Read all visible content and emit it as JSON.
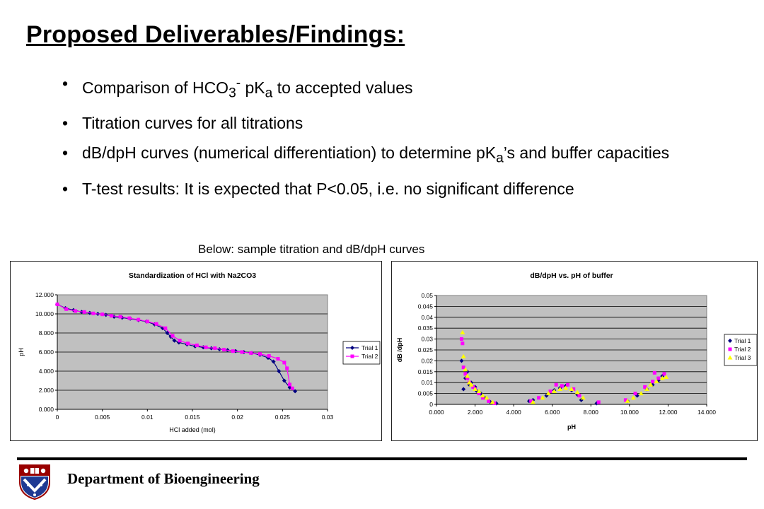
{
  "slide": {
    "title": "Proposed Deliverables/Findings:",
    "bullets": {
      "b1": {
        "pre": "Comparison of HCO",
        "sub1": "3",
        "sup": "-",
        "mid": " pK",
        "sub2": "a",
        "post": " to accepted values"
      },
      "b2": {
        "text": "Titration curves for all titrations"
      },
      "b3": {
        "pre": "dB/dpH curves (numerical differentiation) to determine pK",
        "sub": "a",
        "post": "’s and buffer capacities"
      },
      "b4": {
        "text": "T-test results: It is expected that P<0.05, i.e. no significant difference"
      }
    },
    "bullet_glyph": "•",
    "caption": "Below: sample titration and dB/dpH curves",
    "footer": "Department of Bioengineering",
    "logo_icon": "penn-shield-icon"
  },
  "chart_data": [
    {
      "type": "line",
      "title": "Standardization of HCl with Na2CO3",
      "xlabel": "HCl added (mol)",
      "ylabel": "pH",
      "xlim": [
        0,
        0.03
      ],
      "ylim": [
        0,
        12
      ],
      "xticks": [
        "0",
        "0.005",
        "0.01",
        "0.015",
        "0.02",
        "0.025",
        "0.03"
      ],
      "yticks": [
        "0.000",
        "2.000",
        "4.000",
        "6.000",
        "8.000",
        "10.000",
        "12.000"
      ],
      "grid": true,
      "legend": "right",
      "plot_bg": "#c0c0c0",
      "series": [
        {
          "name": "Trial 1",
          "color": "#000080",
          "marker": "diamond",
          "x": [
            0,
            0.0009,
            0.0018,
            0.0027,
            0.0036,
            0.0045,
            0.0054,
            0.0063,
            0.0072,
            0.0081,
            0.009,
            0.0099,
            0.0108,
            0.0117,
            0.0122,
            0.0126,
            0.013,
            0.0135,
            0.0144,
            0.0153,
            0.0162,
            0.0171,
            0.018,
            0.0189,
            0.0198,
            0.0207,
            0.0216,
            0.0225,
            0.0234,
            0.024,
            0.0246,
            0.0252,
            0.0258,
            0.0264
          ],
          "y": [
            11.0,
            10.6,
            10.4,
            10.2,
            10.1,
            10.0,
            9.9,
            9.7,
            9.6,
            9.5,
            9.35,
            9.2,
            8.9,
            8.5,
            8.0,
            7.6,
            7.2,
            7.0,
            6.8,
            6.6,
            6.5,
            6.4,
            6.3,
            6.2,
            6.1,
            6.0,
            5.9,
            5.7,
            5.4,
            5.0,
            4.0,
            3.0,
            2.3,
            1.9
          ]
        },
        {
          "name": "Trial 2",
          "color": "#ff00ff",
          "marker": "square",
          "x": [
            0,
            0.001,
            0.002,
            0.003,
            0.004,
            0.005,
            0.006,
            0.007,
            0.008,
            0.009,
            0.01,
            0.011,
            0.012,
            0.0128,
            0.0136,
            0.0145,
            0.0155,
            0.0165,
            0.0175,
            0.0185,
            0.0195,
            0.0205,
            0.0215,
            0.0225,
            0.0235,
            0.0245,
            0.0252,
            0.0255,
            0.0258,
            0.0261
          ],
          "y": [
            11.0,
            10.5,
            10.3,
            10.2,
            10.05,
            9.95,
            9.8,
            9.7,
            9.55,
            9.4,
            9.2,
            8.95,
            8.5,
            7.7,
            7.2,
            6.9,
            6.7,
            6.5,
            6.4,
            6.25,
            6.1,
            6.0,
            5.9,
            5.8,
            5.6,
            5.3,
            4.9,
            4.3,
            2.6,
            2.2
          ]
        }
      ]
    },
    {
      "type": "scatter",
      "title": "dB/dpH vs. pH of buffer",
      "xlabel": "pH",
      "ylabel": "dB /dpH",
      "xlim": [
        0,
        14
      ],
      "ylim": [
        0,
        0.05
      ],
      "xticks": [
        "0.000",
        "2.000",
        "4.000",
        "6.000",
        "8.000",
        "10.000",
        "12.000",
        "14.000"
      ],
      "yticks": [
        "0",
        "0.005",
        "0.01",
        "0.015",
        "0.02",
        "0.025",
        "0.03",
        "0.035",
        "0.04",
        "0.045",
        "0.05"
      ],
      "grid": true,
      "legend": "right",
      "plot_bg": "#c0c0c0",
      "series": [
        {
          "name": "Trial 1",
          "color": "#000080",
          "marker": "diamond",
          "x": [
            1.3,
            1.4,
            1.5,
            1.6,
            1.7,
            1.8,
            2.0,
            2.1,
            2.3,
            2.5,
            2.8,
            3.1,
            4.8,
            5.0,
            5.7,
            6.1,
            6.4,
            6.7,
            7.0,
            7.3,
            7.5,
            8.3,
            9.9,
            10.4,
            10.9,
            11.2,
            11.5,
            11.7
          ],
          "y": [
            0.02,
            0.007,
            0.012,
            0.015,
            0.009,
            0.01,
            0.008,
            0.006,
            0.005,
            0.003,
            0.001,
            0.0005,
            0.0015,
            0.002,
            0.004,
            0.0065,
            0.0075,
            0.0085,
            0.0065,
            0.0045,
            0.002,
            0.0005,
            0.0015,
            0.004,
            0.007,
            0.009,
            0.011,
            0.013
          ]
        },
        {
          "name": "Trial 2",
          "color": "#ff00ff",
          "marker": "square",
          "x": [
            1.3,
            1.35,
            1.4,
            1.5,
            1.6,
            1.7,
            1.9,
            2.0,
            2.2,
            2.4,
            2.7,
            3.0,
            4.9,
            5.3,
            5.9,
            6.2,
            6.5,
            6.8,
            7.1,
            7.4,
            8.4,
            9.8,
            10.3,
            10.8,
            11.2,
            11.3,
            11.5,
            11.8
          ],
          "y": [
            0.03,
            0.028,
            0.017,
            0.014,
            0.012,
            0.01,
            0.008,
            0.007,
            0.005,
            0.003,
            0.0015,
            0.0005,
            0.0015,
            0.003,
            0.006,
            0.009,
            0.0085,
            0.009,
            0.007,
            0.004,
            0.001,
            0.002,
            0.005,
            0.008,
            0.0105,
            0.0145,
            0.012,
            0.014
          ]
        },
        {
          "name": "Trial 3",
          "color": "#ffff00",
          "marker": "triangle",
          "x": [
            1.35,
            1.4,
            1.5,
            1.6,
            1.7,
            1.8,
            2.0,
            2.2,
            2.4,
            2.6,
            2.9,
            5.0,
            5.5,
            5.8,
            6.1,
            6.4,
            6.7,
            7.0,
            7.3,
            7.6,
            9.9,
            10.2,
            10.6,
            10.9,
            11.1,
            11.4,
            11.7,
            11.9
          ],
          "y": [
            0.033,
            0.022,
            0.016,
            0.013,
            0.01,
            0.009,
            0.007,
            0.006,
            0.004,
            0.003,
            0.001,
            0.001,
            0.003,
            0.005,
            0.006,
            0.007,
            0.0075,
            0.007,
            0.0055,
            0.003,
            0.0015,
            0.003,
            0.005,
            0.007,
            0.009,
            0.0105,
            0.012,
            0.0125
          ]
        }
      ]
    }
  ]
}
